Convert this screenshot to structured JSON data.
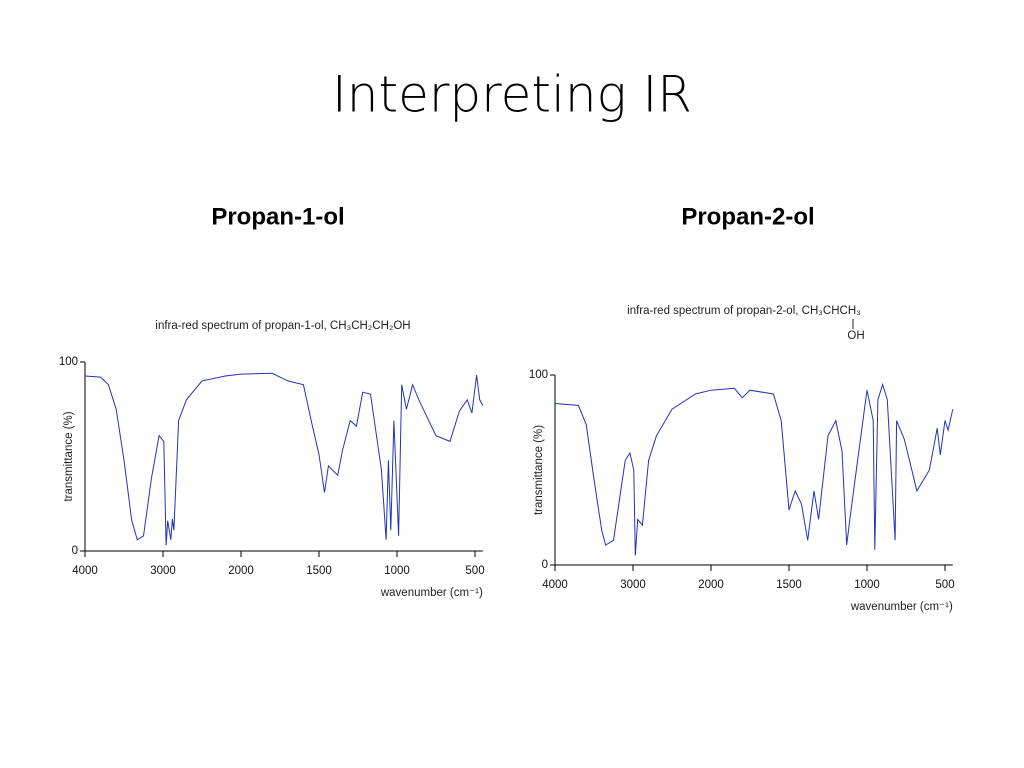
{
  "title": "Interpreting IR",
  "chart_data": [
    {
      "type": "line",
      "heading": "Propan-1-ol",
      "title": "infra-red spectrum of propan-1-ol,  CH₃CH₂CH₂OH",
      "xlabel": "wavenumber (cm⁻¹)",
      "ylabel": "transmittance (%)",
      "x_scale": "even-ticks",
      "color": "#2233bb",
      "xlim": [
        4000,
        450
      ],
      "xticks": [
        4000,
        3000,
        2000,
        1500,
        1000,
        500
      ],
      "ylim": [
        0,
        100
      ],
      "yticks": [
        0,
        100
      ],
      "x": [
        4000,
        3800,
        3700,
        3600,
        3500,
        3400,
        3330,
        3250,
        3150,
        3050,
        2990,
        2960,
        2940,
        2900,
        2880,
        2860,
        2800,
        2700,
        2500,
        2200,
        2000,
        1800,
        1700,
        1600,
        1550,
        1500,
        1465,
        1440,
        1380,
        1350,
        1300,
        1260,
        1220,
        1170,
        1100,
        1070,
        1055,
        1040,
        1020,
        990,
        970,
        940,
        900,
        860,
        750,
        660,
        600,
        550,
        520,
        490,
        470,
        450
      ],
      "values": [
        92.6,
        92,
        88,
        75,
        48,
        16,
        6,
        8,
        38,
        61,
        58,
        3,
        16,
        6,
        17,
        11,
        69,
        80,
        90,
        92.6,
        93.6,
        94,
        90,
        88,
        69,
        51,
        31,
        45,
        40,
        53,
        69,
        66,
        84,
        83,
        43,
        6,
        48,
        11,
        69,
        8,
        88,
        75,
        88,
        80,
        61,
        58,
        74,
        80,
        73,
        93,
        80,
        77
      ]
    },
    {
      "type": "line",
      "heading": "Propan-2-ol",
      "title": "infra-red spectrum of propan-2-ol,  CH₃CHCH₃",
      "annotation": "OH",
      "xlabel": "wavenumber (cm⁻¹)",
      "ylabel": "transmittance (%)",
      "x_scale": "even-ticks",
      "color": "#2233bb",
      "xlim": [
        4000,
        450
      ],
      "xticks": [
        4000,
        3000,
        2000,
        1500,
        1000,
        500
      ],
      "ylim": [
        0,
        100
      ],
      "yticks": [
        0,
        100
      ],
      "x": [
        4000,
        3700,
        3600,
        3500,
        3400,
        3350,
        3250,
        3100,
        3040,
        2990,
        2970,
        2940,
        2880,
        2800,
        2700,
        2500,
        2200,
        2000,
        1850,
        1800,
        1750,
        1600,
        1550,
        1500,
        1460,
        1420,
        1380,
        1340,
        1310,
        1250,
        1200,
        1160,
        1130,
        1110,
        1060,
        1000,
        960,
        950,
        930,
        900,
        870,
        820,
        810,
        760,
        680,
        600,
        550,
        530,
        500,
        480,
        450
      ],
      "values": [
        85,
        84,
        74,
        45,
        18,
        10.5,
        13,
        55,
        59,
        50,
        5,
        24,
        21,
        55,
        68,
        82,
        90,
        92,
        93,
        88,
        92,
        90,
        76,
        29,
        39,
        32,
        13,
        39,
        24,
        68,
        76,
        60,
        10.5,
        24,
        55,
        92,
        76,
        8,
        87,
        95,
        87,
        13,
        76,
        66,
        39,
        50,
        72,
        58,
        76,
        71,
        82
      ]
    }
  ]
}
